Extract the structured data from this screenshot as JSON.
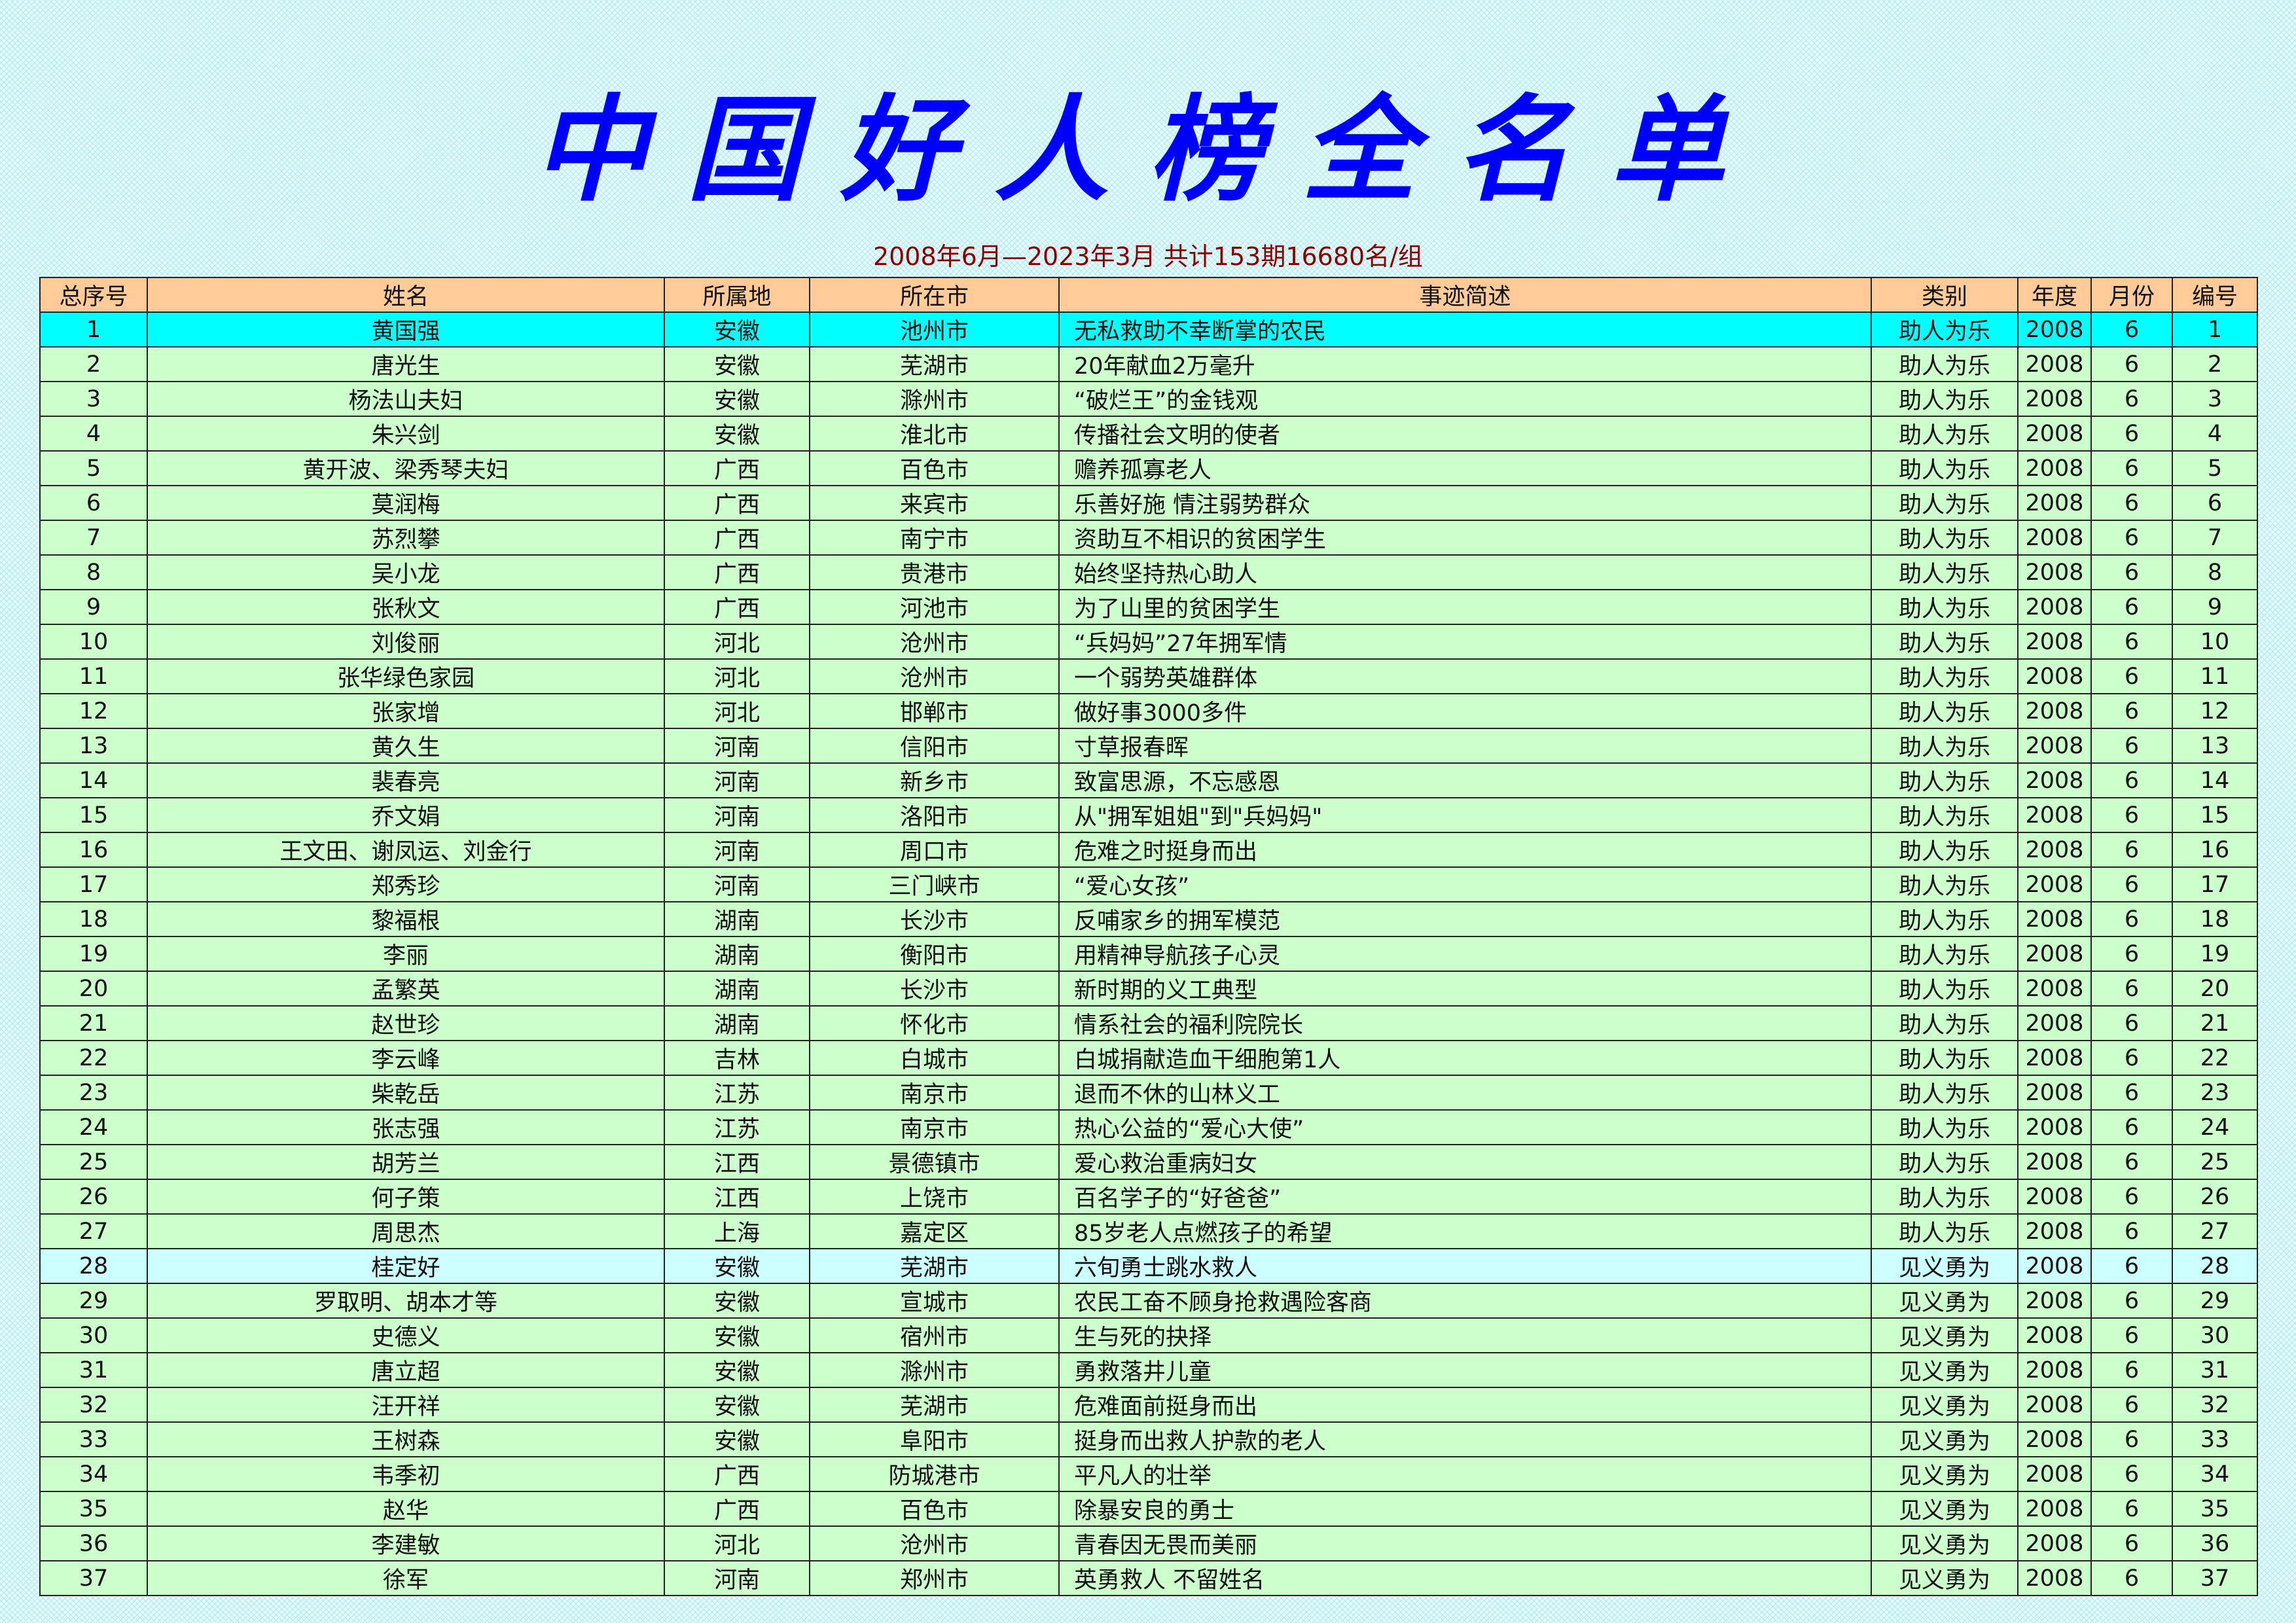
{
  "title": "中国好人榜全名单",
  "subtitle": "2008年6月—2023年3月 共计153期16680名/组",
  "colors": {
    "title": "#0000ff",
    "subtitle": "#8b0000",
    "header_bg": "#ffcc99",
    "row_bg": "#ccffcc",
    "selected_row_bg": "#00ffff",
    "category_start_row_bg": "#ccffff"
  },
  "columns": [
    "总序号",
    "姓名",
    "所属地",
    "所在市",
    "事迹简述",
    "类别",
    "年度",
    "月份",
    "编号"
  ],
  "rows": [
    [
      "1",
      "黄国强",
      "安徽",
      "池州市",
      "无私救助不幸断掌的农民",
      "助人为乐",
      "2008",
      "6",
      "1"
    ],
    [
      "2",
      "唐光生",
      "安徽",
      "芜湖市",
      "20年献血2万毫升",
      "助人为乐",
      "2008",
      "6",
      "2"
    ],
    [
      "3",
      "杨法山夫妇",
      "安徽",
      "滁州市",
      "“破烂王”的金钱观",
      "助人为乐",
      "2008",
      "6",
      "3"
    ],
    [
      "4",
      "朱兴剑",
      "安徽",
      "淮北市",
      "传播社会文明的使者",
      "助人为乐",
      "2008",
      "6",
      "4"
    ],
    [
      "5",
      "黄开波、梁秀琴夫妇",
      "广西",
      "百色市",
      "赡养孤寡老人",
      "助人为乐",
      "2008",
      "6",
      "5"
    ],
    [
      "6",
      "莫润梅",
      "广西",
      "来宾市",
      "乐善好施 情注弱势群众",
      "助人为乐",
      "2008",
      "6",
      "6"
    ],
    [
      "7",
      "苏烈攀",
      "广西",
      "南宁市",
      "资助互不相识的贫困学生",
      "助人为乐",
      "2008",
      "6",
      "7"
    ],
    [
      "8",
      "吴小龙",
      "广西",
      "贵港市",
      "始终坚持热心助人",
      "助人为乐",
      "2008",
      "6",
      "8"
    ],
    [
      "9",
      "张秋文",
      "广西",
      "河池市",
      "为了山里的贫困学生",
      "助人为乐",
      "2008",
      "6",
      "9"
    ],
    [
      "10",
      "刘俊丽",
      "河北",
      "沧州市",
      "“兵妈妈”27年拥军情",
      "助人为乐",
      "2008",
      "6",
      "10"
    ],
    [
      "11",
      "张华绿色家园",
      "河北",
      "沧州市",
      "一个弱势英雄群体",
      "助人为乐",
      "2008",
      "6",
      "11"
    ],
    [
      "12",
      "张家增",
      "河北",
      "邯郸市",
      "做好事3000多件",
      "助人为乐",
      "2008",
      "6",
      "12"
    ],
    [
      "13",
      "黄久生",
      "河南",
      "信阳市",
      "寸草报春晖",
      "助人为乐",
      "2008",
      "6",
      "13"
    ],
    [
      "14",
      "裴春亮",
      "河南",
      "新乡市",
      "致富思源，不忘感恩",
      "助人为乐",
      "2008",
      "6",
      "14"
    ],
    [
      "15",
      "乔文娟",
      "河南",
      "洛阳市",
      "从\"拥军姐姐\"到\"兵妈妈\"",
      "助人为乐",
      "2008",
      "6",
      "15"
    ],
    [
      "16",
      "王文田、谢凤运、刘金行",
      "河南",
      "周口市",
      "危难之时挺身而出",
      "助人为乐",
      "2008",
      "6",
      "16"
    ],
    [
      "17",
      "郑秀珍",
      "河南",
      "三门峡市",
      "“爱心女孩”",
      "助人为乐",
      "2008",
      "6",
      "17"
    ],
    [
      "18",
      "黎福根",
      "湖南",
      "长沙市",
      "反哺家乡的拥军模范",
      "助人为乐",
      "2008",
      "6",
      "18"
    ],
    [
      "19",
      "李丽",
      "湖南",
      "衡阳市",
      "用精神导航孩子心灵",
      "助人为乐",
      "2008",
      "6",
      "19"
    ],
    [
      "20",
      "孟繁英",
      "湖南",
      "长沙市",
      "新时期的义工典型",
      "助人为乐",
      "2008",
      "6",
      "20"
    ],
    [
      "21",
      "赵世珍",
      "湖南",
      "怀化市",
      "情系社会的福利院院长",
      "助人为乐",
      "2008",
      "6",
      "21"
    ],
    [
      "22",
      "李云峰",
      "吉林",
      "白城市",
      "白城捐献造血干细胞第1人",
      "助人为乐",
      "2008",
      "6",
      "22"
    ],
    [
      "23",
      "柴乾岳",
      "江苏",
      "南京市",
      "退而不休的山林义工",
      "助人为乐",
      "2008",
      "6",
      "23"
    ],
    [
      "24",
      "张志强",
      "江苏",
      "南京市",
      "热心公益的“爱心大使”",
      "助人为乐",
      "2008",
      "6",
      "24"
    ],
    [
      "25",
      "胡芳兰",
      "江西",
      "景德镇市",
      "爱心救治重病妇女",
      "助人为乐",
      "2008",
      "6",
      "25"
    ],
    [
      "26",
      "何子策",
      "江西",
      "上饶市",
      "百名学子的“好爸爸”",
      "助人为乐",
      "2008",
      "6",
      "26"
    ],
    [
      "27",
      "周思杰",
      "上海",
      "嘉定区",
      "85岁老人点燃孩子的希望",
      "助人为乐",
      "2008",
      "6",
      "27"
    ],
    [
      "28",
      "桂定好",
      "安徽",
      "芜湖市",
      "六旬勇士跳水救人",
      "见义勇为",
      "2008",
      "6",
      "28"
    ],
    [
      "29",
      "罗取明、胡本才等",
      "安徽",
      "宣城市",
      "农民工奋不顾身抢救遇险客商",
      "见义勇为",
      "2008",
      "6",
      "29"
    ],
    [
      "30",
      "史德义",
      "安徽",
      "宿州市",
      "生与死的抉择",
      "见义勇为",
      "2008",
      "6",
      "30"
    ],
    [
      "31",
      "唐立超",
      "安徽",
      "滁州市",
      "勇救落井儿童",
      "见义勇为",
      "2008",
      "6",
      "31"
    ],
    [
      "32",
      "汪开祥",
      "安徽",
      "芜湖市",
      "危难面前挺身而出",
      "见义勇为",
      "2008",
      "6",
      "32"
    ],
    [
      "33",
      "王树森",
      "安徽",
      "阜阳市",
      "挺身而出救人护款的老人",
      "见义勇为",
      "2008",
      "6",
      "33"
    ],
    [
      "34",
      "韦季初",
      "广西",
      "防城港市",
      "平凡人的壮举",
      "见义勇为",
      "2008",
      "6",
      "34"
    ],
    [
      "35",
      "赵华",
      "广西",
      "百色市",
      "除暴安良的勇士",
      "见义勇为",
      "2008",
      "6",
      "35"
    ],
    [
      "36",
      "李建敏",
      "河北",
      "沧州市",
      "青春因无畏而美丽",
      "见义勇为",
      "2008",
      "6",
      "36"
    ],
    [
      "37",
      "徐军",
      "河南",
      "郑州市",
      "英勇救人 不留姓名",
      "见义勇为",
      "2008",
      "6",
      "37"
    ]
  ]
}
